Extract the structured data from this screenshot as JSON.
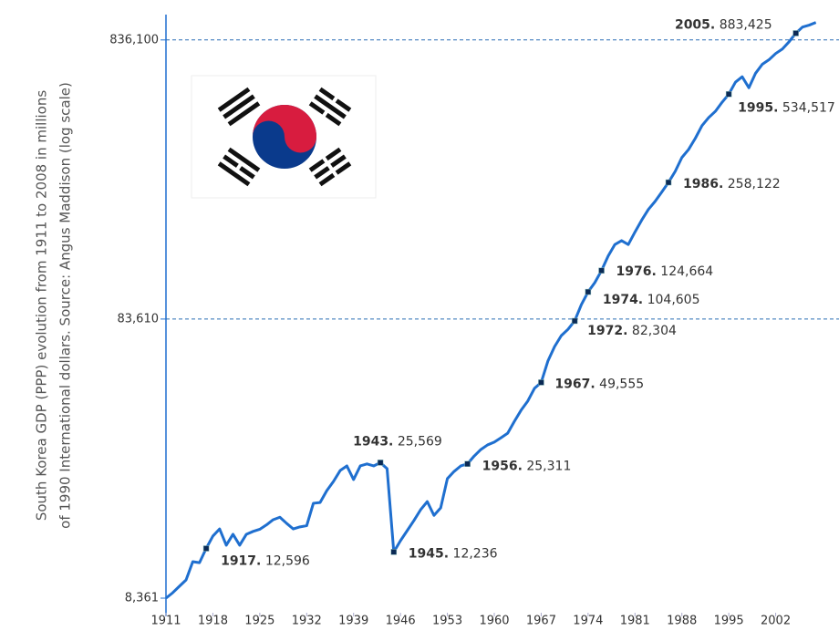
{
  "chart_data": {
    "type": "line",
    "ylabel": [
      "South Korea GDP (PPP) evolution from 1911 to 2008 in millions",
      "of 1990 International dollars. Source: Angus Maddison (log scale)"
    ],
    "log_y": true,
    "grid": true,
    "xlim": [
      1911,
      2009
    ],
    "xticks": [
      1911,
      1918,
      1925,
      1932,
      1939,
      1946,
      1953,
      1960,
      1967,
      1974,
      1981,
      1988,
      1995,
      2002
    ],
    "ylim": [
      8361,
      1000000
    ],
    "yticks": [
      {
        "value": 8361,
        "label": "8,361"
      },
      {
        "value": 83610,
        "label": "83,610"
      },
      {
        "value": 836100,
        "label": "836,100"
      }
    ],
    "x": [
      1911,
      1912,
      1913,
      1914,
      1915,
      1916,
      1917,
      1918,
      1919,
      1920,
      1921,
      1922,
      1923,
      1924,
      1925,
      1926,
      1927,
      1928,
      1929,
      1930,
      1931,
      1932,
      1933,
      1934,
      1935,
      1936,
      1937,
      1938,
      1939,
      1940,
      1941,
      1942,
      1943,
      1944,
      1945,
      1946,
      1947,
      1948,
      1949,
      1950,
      1951,
      1952,
      1953,
      1954,
      1955,
      1956,
      1957,
      1958,
      1959,
      1960,
      1961,
      1962,
      1963,
      1964,
      1965,
      1966,
      1967,
      1968,
      1969,
      1970,
      1971,
      1972,
      1973,
      1974,
      1975,
      1976,
      1977,
      1978,
      1979,
      1980,
      1981,
      1982,
      1983,
      1984,
      1985,
      1986,
      1987,
      1988,
      1989,
      1990,
      1991,
      1992,
      1993,
      1994,
      1995,
      1996,
      1997,
      1998,
      1999,
      2000,
      2001,
      2002,
      2003,
      2004,
      2005,
      2006,
      2007,
      2008
    ],
    "series": [
      {
        "color": "#1f6fcf",
        "values": [
          8361,
          8740,
          9220,
          9720,
          11300,
          11200,
          12596,
          13950,
          14800,
          12940,
          14160,
          12940,
          14160,
          14500,
          14760,
          15300,
          15970,
          16300,
          15500,
          14800,
          15050,
          15200,
          18290,
          18400,
          20300,
          21900,
          23960,
          24890,
          22240,
          24890,
          25300,
          24890,
          25569,
          24330,
          12236,
          13430,
          14590,
          15850,
          17330,
          18540,
          16550,
          17600,
          22410,
          23780,
          24890,
          25311,
          27000,
          28500,
          29600,
          30300,
          31400,
          32600,
          35950,
          39400,
          42500,
          47200,
          49555,
          59100,
          66600,
          72900,
          76800,
          82304,
          94200,
          104605,
          112900,
          124664,
          140600,
          154600,
          159600,
          154600,
          171400,
          189000,
          206500,
          220700,
          238300,
          258122,
          282600,
          316900,
          338600,
          371200,
          412200,
          440600,
          464000,
          500000,
          534517,
          590300,
          617000,
          563500,
          635400,
          683900,
          709900,
          747500,
          775900,
          823500,
          883425,
          929700,
          944800,
          965700
        ],
        "value_labels": [
          null,
          null,
          null,
          null,
          null,
          null,
          "12,596",
          null,
          null,
          null,
          null,
          null,
          null,
          null,
          null,
          null,
          null,
          null,
          null,
          null,
          null,
          null,
          null,
          null,
          null,
          null,
          null,
          null,
          null,
          null,
          null,
          null,
          "25,569",
          null,
          "12,236",
          null,
          null,
          null,
          null,
          null,
          null,
          null,
          null,
          null,
          null,
          "25,311",
          null,
          null,
          null,
          null,
          null,
          null,
          null,
          null,
          null,
          null,
          "49,555",
          null,
          null,
          null,
          null,
          "82,304",
          null,
          "104,605",
          null,
          "124,664",
          null,
          null,
          null,
          null,
          null,
          null,
          null,
          null,
          null,
          "258,122",
          null,
          null,
          null,
          null,
          null,
          null,
          null,
          null,
          "534,517",
          null,
          null,
          null,
          null,
          null,
          null,
          null,
          null,
          null,
          "883,425",
          null,
          null,
          null
        ]
      }
    ],
    "annotations": [
      {
        "x": 1917,
        "label": "1917."
      },
      {
        "x": 1943,
        "label": "1943."
      },
      {
        "x": 1945,
        "label": "1945."
      },
      {
        "x": 1956,
        "label": "1956."
      },
      {
        "x": 1967,
        "label": "1967."
      },
      {
        "x": 1972,
        "label": "1972."
      },
      {
        "x": 1974,
        "label": "1974."
      },
      {
        "x": 1976,
        "label": "1976."
      },
      {
        "x": 1986,
        "label": "1986."
      },
      {
        "x": 1995,
        "label": "1995."
      },
      {
        "x": 2005,
        "label": "2005."
      }
    ]
  }
}
